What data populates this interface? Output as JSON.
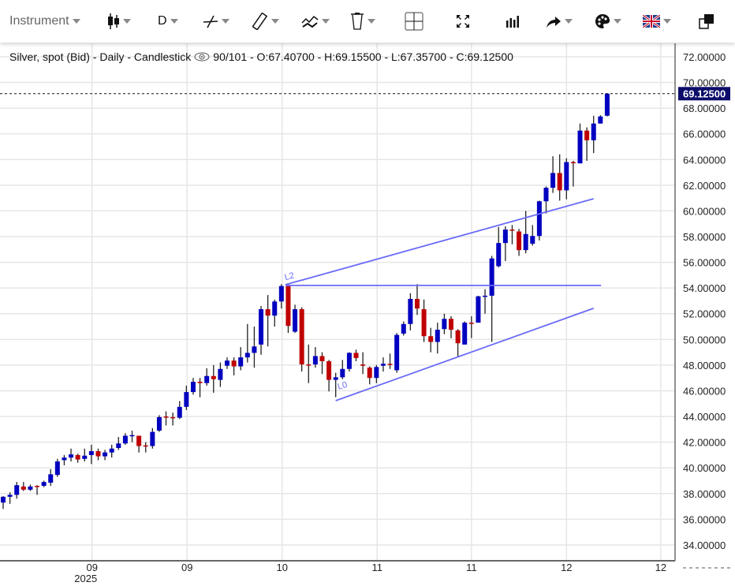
{
  "toolbar": {
    "instrument_label": "Instrument",
    "period_label": "D",
    "items": [
      "candlestick-icon",
      "period-select",
      "line-tool-icon",
      "ruler-icon",
      "indicator-icon",
      "trash-icon",
      "crosshair-icon",
      "fullscreen-icon",
      "volume-bars-icon",
      "share-icon",
      "palette-icon",
      "uk-flag-icon",
      "popout-icon"
    ]
  },
  "legend": {
    "title": "Silver, spot (Bid) - Daily - Candlestick",
    "info": "90/101 - O:67.40700 - H:69.15500 - L:67.35700 - C:69.12500"
  },
  "colors": {
    "up": "#0000c0",
    "down": "#c00000",
    "trendline": "#6a6af8",
    "badge": "#0c0c6a",
    "grid": "#e6e6e6"
  },
  "chart_data": {
    "type": "candlestick",
    "ylim": [
      32.77,
      73.04
    ],
    "xlim": [
      -0.465,
      99
    ],
    "y_ticks": [
      "34.00000",
      "36.00000",
      "38.00000",
      "40.00000",
      "42.00000",
      "44.00000",
      "46.00000",
      "48.00000",
      "50.00000",
      "52.00000",
      "54.00000",
      "56.00000",
      "58.00000",
      "60.00000",
      "62.00000",
      "64.00000",
      "66.00000",
      "68.00000",
      "70.00000",
      "72.00000"
    ],
    "x_ticks": [
      {
        "index": 13.1,
        "label": "09",
        "sub": "2025"
      },
      {
        "index": 27.1,
        "label": "09"
      },
      {
        "index": 41.1,
        "label": "10"
      },
      {
        "index": 55.1,
        "label": "11"
      },
      {
        "index": 69.0,
        "label": "11"
      },
      {
        "index": 83.0,
        "label": "12"
      },
      {
        "index": 96.9,
        "label": "12"
      }
    ],
    "last_price": "69.12500",
    "last_value": 69.125,
    "ohlc": [
      [
        37.3,
        37.8,
        36.8,
        37.75
      ],
      [
        37.75,
        38.1,
        37.2,
        37.9
      ],
      [
        37.9,
        38.9,
        37.6,
        38.65
      ],
      [
        38.55,
        38.9,
        38.2,
        38.3
      ],
      [
        38.3,
        38.7,
        38.2,
        38.55
      ],
      [
        38.6,
        38.65,
        37.9,
        38.55
      ],
      [
        38.6,
        39.0,
        38.5,
        38.9
      ],
      [
        38.85,
        39.9,
        38.6,
        39.5
      ],
      [
        39.45,
        40.7,
        39.3,
        40.5
      ],
      [
        40.6,
        41.0,
        40.2,
        40.8
      ],
      [
        40.8,
        41.5,
        40.5,
        41.05
      ],
      [
        41.0,
        41.1,
        40.4,
        40.65
      ],
      [
        40.7,
        41.5,
        40.5,
        40.95
      ],
      [
        41.0,
        41.8,
        40.3,
        41.3
      ],
      [
        41.3,
        41.5,
        40.6,
        40.9
      ],
      [
        40.9,
        41.4,
        40.6,
        41.2
      ],
      [
        41.2,
        41.8,
        40.8,
        41.5
      ],
      [
        41.55,
        42.4,
        41.4,
        41.9
      ],
      [
        41.9,
        42.7,
        41.8,
        42.5
      ],
      [
        42.5,
        42.9,
        42.0,
        42.55
      ],
      [
        42.5,
        42.5,
        41.2,
        41.7
      ],
      [
        41.75,
        42.0,
        41.2,
        41.7
      ],
      [
        41.7,
        43.1,
        41.5,
        42.8
      ],
      [
        42.9,
        44.1,
        42.8,
        43.95
      ],
      [
        44.0,
        44.4,
        43.3,
        43.95
      ],
      [
        43.95,
        44.3,
        43.3,
        43.9
      ],
      [
        43.9,
        45.2,
        43.8,
        44.75
      ],
      [
        44.75,
        46.4,
        44.5,
        45.9
      ],
      [
        45.9,
        47.0,
        45.7,
        46.7
      ],
      [
        46.7,
        47.0,
        45.5,
        46.6
      ],
      [
        46.6,
        47.75,
        46.4,
        47.15
      ],
      [
        47.15,
        48.0,
        45.85,
        46.9
      ],
      [
        46.85,
        48.2,
        46.3,
        47.7
      ],
      [
        47.95,
        48.6,
        47.7,
        48.35
      ],
      [
        48.35,
        48.6,
        47.2,
        47.9
      ],
      [
        47.9,
        49.4,
        47.6,
        48.6
      ],
      [
        48.6,
        51.2,
        48.2,
        48.95
      ],
      [
        48.95,
        51.0,
        47.8,
        49.45
      ],
      [
        49.6,
        52.6,
        48.8,
        52.35
      ],
      [
        52.35,
        53.45,
        49.45,
        51.85
      ],
      [
        51.85,
        53.1,
        51.0,
        52.95
      ],
      [
        52.95,
        54.3,
        52.4,
        54.15
      ],
      [
        54.15,
        54.35,
        50.5,
        51.05
      ],
      [
        50.6,
        52.7,
        50.5,
        52.35
      ],
      [
        52.35,
        52.5,
        47.5,
        48.05
      ],
      [
        48.05,
        49.6,
        46.6,
        48.0
      ],
      [
        48.05,
        49.4,
        47.8,
        48.7
      ],
      [
        48.7,
        49.0,
        47.3,
        48.3
      ],
      [
        48.3,
        48.4,
        45.95,
        46.85
      ],
      [
        46.85,
        47.4,
        45.5,
        47.05
      ],
      [
        47.05,
        48.4,
        46.9,
        47.7
      ],
      [
        47.7,
        49.0,
        47.5,
        48.95
      ],
      [
        48.95,
        49.2,
        48.3,
        48.55
      ],
      [
        48.05,
        49.0,
        47.3,
        47.95
      ],
      [
        47.8,
        47.9,
        46.5,
        47.0
      ],
      [
        47.0,
        48.0,
        46.6,
        47.85
      ],
      [
        47.95,
        48.6,
        47.5,
        48.1
      ],
      [
        48.1,
        48.9,
        47.7,
        48.05
      ],
      [
        47.6,
        50.5,
        47.4,
        50.35
      ],
      [
        50.45,
        51.4,
        50.3,
        51.2
      ],
      [
        51.2,
        53.6,
        50.7,
        53.15
      ],
      [
        53.15,
        54.3,
        51.9,
        52.4
      ],
      [
        52.35,
        53.1,
        49.8,
        50.25
      ],
      [
        50.25,
        50.9,
        49.0,
        49.8
      ],
      [
        49.8,
        51.3,
        48.9,
        50.75
      ],
      [
        50.8,
        52.0,
        50.4,
        51.6
      ],
      [
        51.6,
        51.8,
        50.1,
        50.75
      ],
      [
        50.7,
        50.8,
        48.6,
        49.7
      ],
      [
        49.6,
        51.4,
        49.6,
        51.3
      ],
      [
        51.3,
        51.8,
        50.1,
        51.25
      ],
      [
        51.3,
        53.4,
        51.3,
        53.35
      ],
      [
        53.35,
        53.9,
        52.0,
        53.4
      ],
      [
        53.4,
        56.5,
        49.8,
        56.3
      ],
      [
        55.7,
        58.75,
        55.6,
        57.5
      ],
      [
        57.5,
        58.8,
        56.1,
        58.55
      ],
      [
        58.55,
        58.9,
        57.4,
        58.5
      ],
      [
        58.4,
        58.6,
        56.5,
        56.95
      ],
      [
        56.95,
        60.0,
        56.7,
        58.2
      ],
      [
        57.45,
        58.9,
        57.3,
        58.05
      ],
      [
        58.05,
        60.8,
        57.7,
        60.75
      ],
      [
        60.75,
        61.9,
        59.8,
        61.8
      ],
      [
        61.8,
        64.25,
        61.4,
        62.95
      ],
      [
        62.95,
        64.4,
        60.8,
        61.6
      ],
      [
        61.6,
        64.1,
        60.9,
        63.8
      ],
      [
        63.8,
        63.9,
        61.9,
        63.75
      ],
      [
        63.7,
        66.8,
        63.7,
        66.25
      ],
      [
        66.25,
        66.5,
        63.9,
        65.5
      ],
      [
        65.5,
        67.4,
        64.5,
        66.8
      ],
      [
        66.8,
        67.45,
        66.8,
        67.35
      ],
      [
        67.407,
        69.155,
        67.357,
        69.125
      ]
    ],
    "drawings": [
      {
        "name": "upper-channel-line",
        "from": [
          41.6,
          54.26
        ],
        "to": [
          87.0,
          60.95
        ]
      },
      {
        "name": "horizontal-line",
        "from": [
          41.6,
          54.2
        ],
        "to": [
          88.1,
          54.2
        ]
      },
      {
        "name": "lower-channel-line",
        "from": [
          49.0,
          45.23
        ],
        "to": [
          87.0,
          52.42
        ]
      }
    ],
    "labels": [
      {
        "text": "L2",
        "at": [
          41.6,
          54.6
        ]
      },
      {
        "text": "L0",
        "at": [
          49.4,
          46.1
        ]
      }
    ]
  }
}
